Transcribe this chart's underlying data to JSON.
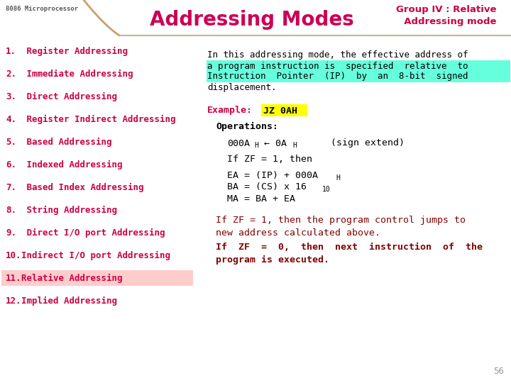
{
  "title": "Addressing Modes",
  "header_subtitle": "Group IV : Relative\n  Addressing mode",
  "header_label": "8086 Microprocessor",
  "bg_color": "#ffffff",
  "header_line_color": "#c8a06e",
  "title_color": "#cc0055",
  "subtitle_color": "#cc0044",
  "left_items": [
    {
      "num": "1.",
      "text": " Register Addressing",
      "highlight": false
    },
    {
      "num": "2.",
      "text": " Immediate Addressing",
      "highlight": false
    },
    {
      "num": "3.",
      "text": " Direct Addressing",
      "highlight": false
    },
    {
      "num": "4.",
      "text": " Register Indirect Addressing",
      "highlight": false
    },
    {
      "num": "5.",
      "text": " Based Addressing",
      "highlight": false
    },
    {
      "num": "6.",
      "text": " Indexed Addressing",
      "highlight": false
    },
    {
      "num": "7.",
      "text": " Based Index Addressing",
      "highlight": false
    },
    {
      "num": "8.",
      "text": " String Addressing",
      "highlight": false
    },
    {
      "num": "9.",
      "text": " Direct I/O port Addressing",
      "highlight": false
    },
    {
      "num": "10.",
      "text": "Indirect I/O port Addressing",
      "highlight": false
    },
    {
      "num": "11.",
      "text": "Relative Addressing",
      "highlight": true
    },
    {
      "num": "12.",
      "text": "Implied Addressing",
      "highlight": false
    }
  ],
  "highlight_color": "#ffcccc",
  "item_text_color": "#cc0044",
  "right_highlight_green": "#66ffdd",
  "right_highlight_yellow": "#ffff00",
  "right_text_dark_red": "#800000",
  "page_num": "56"
}
